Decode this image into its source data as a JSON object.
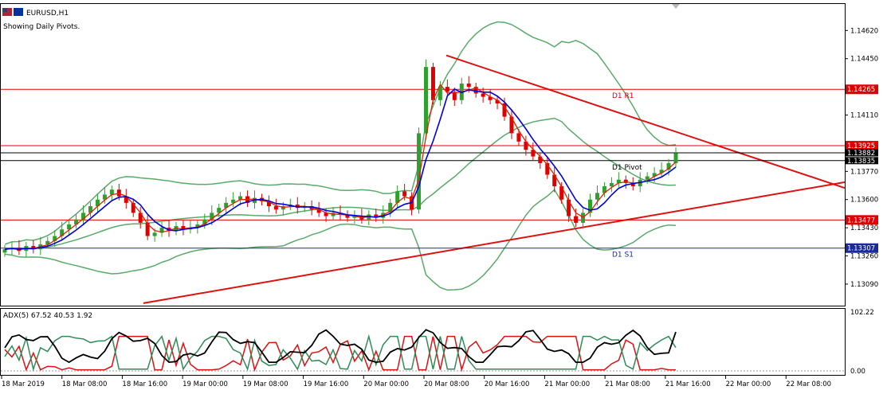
{
  "window": {
    "symbol_title": "EURUSD,H1",
    "subtitle": "Showing Daily Pivots."
  },
  "colors": {
    "bull": "#2ea02e",
    "bear": "#e00000",
    "bollinger": "#5aaa6a",
    "ma_blue": "#0000dd",
    "ma_red": "#dd2200",
    "pivot_red": "#e00000",
    "pivot_blue": "#1a2a9a",
    "trendline": "#dd1111",
    "adx_main": "#000000",
    "adx_plus": "#2e8b57",
    "adx_minus": "#dd1111"
  },
  "chart_data": {
    "type": "candlestick",
    "symbol": "EURUSD",
    "timeframe": "H1",
    "y_axis_ticks": [
      "1.14620",
      "1.14450",
      "1.14110",
      "1.13770",
      "1.13600",
      "1.13430",
      "1.13260",
      "1.13090"
    ],
    "y_range": [
      1.1296,
      1.1478
    ],
    "x_axis_ticks": [
      "18 Mar 2019",
      "18 Mar 08:00",
      "18 Mar 16:00",
      "19 Mar 00:00",
      "19 Mar 08:00",
      "19 Mar 16:00",
      "20 Mar 00:00",
      "20 Mar 08:00",
      "20 Mar 16:00",
      "21 Mar 00:00",
      "21 Mar 08:00",
      "21 Mar 16:00",
      "22 Mar 00:00",
      "22 Mar 08:00"
    ],
    "price_levels": [
      {
        "label": "D1 R1",
        "value": 1.14265,
        "tag": "1.14265",
        "color": "red"
      },
      {
        "label": "",
        "value": 1.13925,
        "tag": "1.13925",
        "color": "red"
      },
      {
        "label": "",
        "value": 1.13882,
        "tag": "1.13882",
        "color": "black"
      },
      {
        "label": "D1 Pivot",
        "value": 1.13835,
        "tag": "1.13835",
        "color": "black"
      },
      {
        "label": "",
        "value": 1.13477,
        "tag": "1.13477",
        "color": "red"
      },
      {
        "label": "D1 S1",
        "value": 1.13307,
        "tag": "1.13307",
        "color": "blue"
      }
    ],
    "close_series": [
      1.133,
      1.1331,
      1.1329,
      1.1332,
      1.133,
      1.1333,
      1.1335,
      1.1338,
      1.1342,
      1.1345,
      1.1348,
      1.1352,
      1.1356,
      1.136,
      1.1363,
      1.1366,
      1.1362,
      1.1358,
      1.1352,
      1.1346,
      1.1338,
      1.134,
      1.1343,
      1.1341,
      1.1344,
      1.1342,
      1.1343,
      1.1345,
      1.1348,
      1.1352,
      1.1355,
      1.1358,
      1.136,
      1.1362,
      1.1358,
      1.1361,
      1.1359,
      1.1356,
      1.1354,
      1.1356,
      1.1357,
      1.1355,
      1.1356,
      1.1354,
      1.1352,
      1.135,
      1.1352,
      1.1351,
      1.1349,
      1.135,
      1.1348,
      1.1351,
      1.1349,
      1.1352,
      1.1358,
      1.1365,
      1.1362,
      1.1354,
      1.14,
      1.144,
      1.142,
      1.1428,
      1.1425,
      1.142,
      1.143,
      1.1428,
      1.1424,
      1.1422,
      1.142,
      1.1418,
      1.141,
      1.14,
      1.1395,
      1.139,
      1.1386,
      1.1382,
      1.1375,
      1.1368,
      1.136,
      1.135,
      1.1346,
      1.1352,
      1.136,
      1.1364,
      1.1368,
      1.137,
      1.1372,
      1.137,
      1.1368,
      1.1372,
      1.1374,
      1.1376,
      1.1378,
      1.1382,
      1.1388
    ],
    "indicator": {
      "name": "ADX(5)",
      "values_label": "ADX(5) 67.52 40.53 1.92",
      "adx": 67.52,
      "plus_di": 40.53,
      "minus_di": 1.92,
      "y_ticks": [
        "102.22",
        "0.00"
      ]
    }
  }
}
